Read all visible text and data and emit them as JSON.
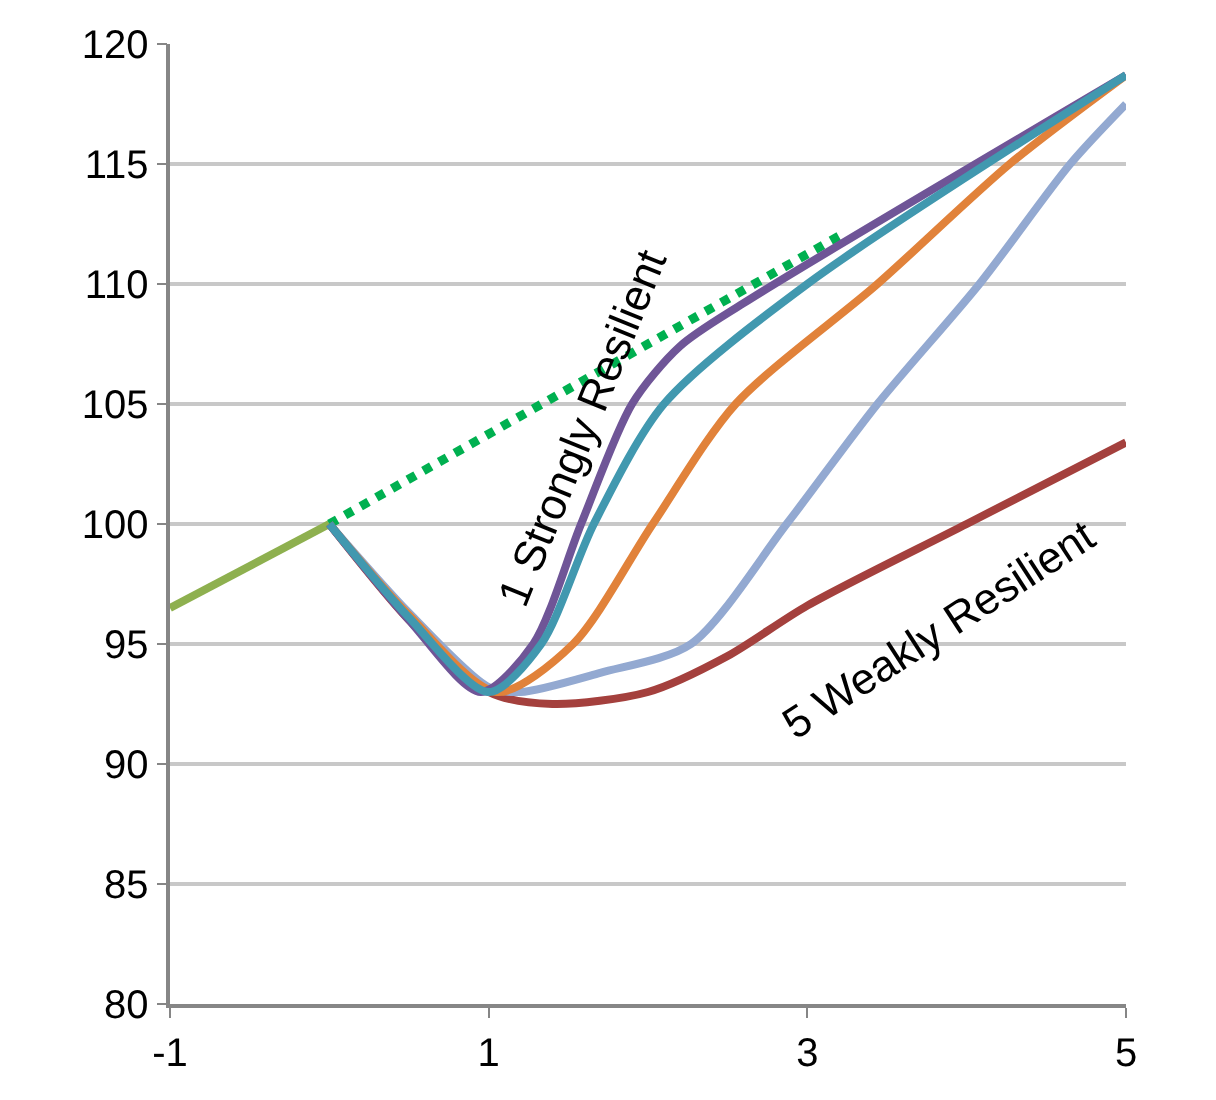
{
  "chart_data": {
    "type": "line",
    "xlim": [
      -1,
      5
    ],
    "xticks": [
      -1,
      1,
      3,
      5
    ],
    "ylim": [
      80,
      120
    ],
    "yticks": [
      80,
      85,
      90,
      95,
      100,
      105,
      110,
      115,
      120
    ],
    "grid": "y",
    "marker": "none",
    "series": [
      {
        "color": "#8eb04f",
        "x": [
          -1,
          0
        ],
        "values": [
          96.5,
          100
        ]
      },
      {
        "color": "#00b050",
        "line_style": "dotted",
        "x": [
          0,
          3.2
        ],
        "values": [
          100,
          112
        ]
      },
      {
        "color": "#a4403d",
        "x": [
          0,
          0.5,
          1,
          1.4,
          2,
          2.5,
          3,
          4,
          5
        ],
        "values": [
          100,
          96,
          93,
          92.5,
          93,
          94.5,
          96.6,
          100,
          103.4
        ]
      },
      {
        "color": "#93a9d1",
        "x": [
          0,
          0.5,
          1,
          1.2,
          1.7,
          2.27,
          2.87,
          3.44,
          4.08,
          4.65,
          5
        ],
        "values": [
          100,
          96.3,
          93.2,
          93,
          93.8,
          95,
          100,
          105,
          110,
          115,
          117.5
        ]
      },
      {
        "color": "#e1823a",
        "x": [
          0,
          0.5,
          1.05,
          1.53,
          2.03,
          2.55,
          3.44,
          4.27,
          5
        ],
        "values": [
          100,
          96.2,
          93,
          95,
          100,
          105,
          110,
          115,
          118.7
        ]
      },
      {
        "color": "#6f5597",
        "x": [
          0,
          0.5,
          0.95,
          1.28,
          1.58,
          1.9,
          2.2,
          2.6,
          5
        ],
        "values": [
          100,
          96,
          93,
          95,
          100,
          105,
          107.4,
          109.2,
          118.7
        ]
      },
      {
        "color": "#4198af",
        "x": [
          0,
          0.5,
          1,
          1.33,
          1.66,
          2.1,
          3,
          5
        ],
        "values": [
          100,
          96.1,
          93,
          95,
          100,
          105,
          110,
          118.7
        ]
      }
    ],
    "annotations": [
      "1 Strongly Resilient",
      "5 Weakly Resilient"
    ]
  }
}
